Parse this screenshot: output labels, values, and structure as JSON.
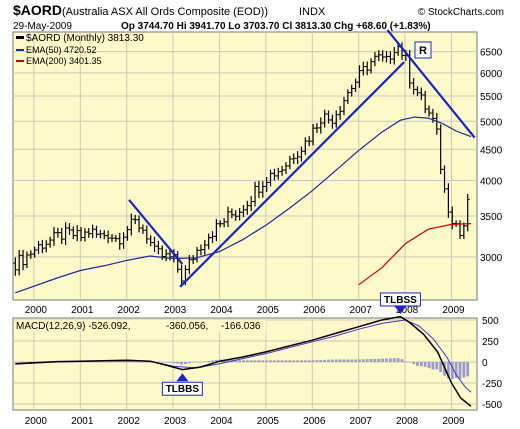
{
  "header": {
    "symbol": "$AORD",
    "name": "(Australia ASX All Ords Composite (EOD))",
    "exchange": "INDX",
    "source": "© StockCharts.com",
    "date": "29-May-2009",
    "quote": "Op 3744.70  Hi 3941.70  Lo 3703.70  Cl 3813.30  Chg +68.60 (+1.83%)",
    "quote_op": "3744.70",
    "quote_chg": "+68.60 (+1.83%)"
  },
  "price_panel": {
    "legend": [
      {
        "text": "$AORD (Monthly) 3813.30",
        "color": "#000000",
        "style": "bar"
      },
      {
        "text": "EMA(50) 4720.52",
        "color": "#1f2a9b",
        "style": "line"
      },
      {
        "text": "EMA(200) 3401.35",
        "color": "#d40000",
        "style": "line"
      }
    ],
    "y_ticks": [
      3000,
      3500,
      4000,
      4500,
      5000,
      5500,
      6000,
      6500
    ],
    "annotation_label": "R",
    "trendline_color": "#1a24c8"
  },
  "macd_panel": {
    "legend": {
      "main": "MACD(12,26,9) -526.092,",
      "signal": "-360.056,",
      "hist": "-166.036"
    },
    "signal_color": "#4433cc",
    "hist_color": "#9a9ad0",
    "y_ticks": [
      500,
      250,
      0,
      -250,
      -500
    ],
    "markers": [
      {
        "label": "TLBBS",
        "x": 2003.2,
        "y": -110,
        "dir": "up"
      },
      {
        "label": "TLBSS",
        "x": 2007.9,
        "y": 560,
        "dir": "down"
      }
    ]
  },
  "x_axis": {
    "years": [
      "2000",
      "2001",
      "2002",
      "2003",
      "2004",
      "2005",
      "2006",
      "2007",
      "2008",
      "2009"
    ]
  },
  "colors": {
    "panel_bg": "#fdf9c9",
    "grid": "#c9c9b8",
    "price_bar": "#000000",
    "ema50": "#1f2a9b",
    "ema200": "#d40000"
  },
  "chart_data": {
    "type": "ohlc",
    "title": "$AORD (Australia ASX All Ords Composite (EOD))",
    "period": "monthly",
    "x_range": [
      1999.55,
      2009.55
    ],
    "y_scale": "log",
    "ylim": [
      2550,
      7000
    ],
    "price_close_anchors": [
      [
        1999.6,
        2930
      ],
      [
        1999.8,
        2990
      ],
      [
        2000.0,
        3080
      ],
      [
        2000.2,
        3160
      ],
      [
        2000.4,
        3200
      ],
      [
        2000.6,
        3260
      ],
      [
        2000.8,
        3270
      ],
      [
        2001.0,
        3230
      ],
      [
        2001.2,
        3310
      ],
      [
        2001.4,
        3240
      ],
      [
        2001.6,
        3280
      ],
      [
        2001.8,
        3200
      ],
      [
        2002.0,
        3330
      ],
      [
        2002.2,
        3420
      ],
      [
        2002.4,
        3300
      ],
      [
        2002.6,
        3050
      ],
      [
        2002.8,
        3000
      ],
      [
        2003.0,
        2980
      ],
      [
        2003.2,
        2760
      ],
      [
        2003.4,
        2980
      ],
      [
        2003.6,
        3140
      ],
      [
        2003.8,
        3280
      ],
      [
        2004.0,
        3380
      ],
      [
        2004.2,
        3500
      ],
      [
        2004.4,
        3560
      ],
      [
        2004.6,
        3700
      ],
      [
        2004.8,
        3880
      ],
      [
        2005.0,
        4050
      ],
      [
        2005.2,
        4130
      ],
      [
        2005.4,
        4220
      ],
      [
        2005.6,
        4420
      ],
      [
        2005.8,
        4560
      ],
      [
        2006.0,
        4800
      ],
      [
        2006.2,
        5110
      ],
      [
        2006.4,
        5020
      ],
      [
        2006.6,
        5300
      ],
      [
        2006.8,
        5630
      ],
      [
        2007.0,
        5900
      ],
      [
        2007.2,
        6200
      ],
      [
        2007.4,
        6350
      ],
      [
        2007.6,
        6250
      ],
      [
        2007.8,
        6700
      ],
      [
        2007.9,
        6550
      ],
      [
        2008.0,
        6350
      ],
      [
        2008.1,
        5900
      ],
      [
        2008.2,
        5700
      ],
      [
        2008.3,
        5500
      ],
      [
        2008.45,
        5250
      ],
      [
        2008.6,
        5000
      ],
      [
        2008.7,
        4700
      ],
      [
        2008.8,
        4000
      ],
      [
        2008.9,
        3700
      ],
      [
        2009.0,
        3500
      ],
      [
        2009.1,
        3400
      ],
      [
        2009.2,
        3230
      ],
      [
        2009.3,
        3450
      ],
      [
        2009.35,
        3650
      ],
      [
        2009.42,
        3813
      ]
    ],
    "ema50": [
      [
        1999.6,
        2620
      ],
      [
        2000.5,
        2770
      ],
      [
        2001.0,
        2850
      ],
      [
        2001.5,
        2900
      ],
      [
        2002.0,
        2960
      ],
      [
        2002.5,
        3010
      ],
      [
        2003.0,
        2980
      ],
      [
        2003.5,
        2990
      ],
      [
        2004.0,
        3060
      ],
      [
        2004.5,
        3200
      ],
      [
        2005.0,
        3380
      ],
      [
        2005.5,
        3600
      ],
      [
        2006.0,
        3850
      ],
      [
        2006.5,
        4150
      ],
      [
        2007.0,
        4480
      ],
      [
        2007.5,
        4800
      ],
      [
        2007.9,
        5020
      ],
      [
        2008.2,
        5080
      ],
      [
        2008.5,
        5060
      ],
      [
        2008.8,
        4960
      ],
      [
        2009.1,
        4820
      ],
      [
        2009.42,
        4720
      ]
    ],
    "ema200": [
      [
        2007.0,
        2700
      ],
      [
        2007.5,
        2880
      ],
      [
        2008.0,
        3150
      ],
      [
        2008.5,
        3330
      ],
      [
        2009.0,
        3390
      ],
      [
        2009.42,
        3401
      ]
    ],
    "trendlines": [
      [
        [
          2003.15,
          2680
        ],
        [
          2007.98,
          6250
        ]
      ],
      [
        [
          2002.05,
          3720
        ],
        [
          2003.2,
          2920
        ]
      ],
      [
        [
          2007.62,
          7050
        ],
        [
          2009.5,
          4700
        ]
      ]
    ],
    "macd": [
      [
        1999.6,
        -20
      ],
      [
        2000.0,
        -10
      ],
      [
        2000.5,
        5
      ],
      [
        2001.0,
        10
      ],
      [
        2001.5,
        15
      ],
      [
        2002.0,
        20
      ],
      [
        2002.5,
        10
      ],
      [
        2002.8,
        -30
      ],
      [
        2003.2,
        -90
      ],
      [
        2003.6,
        -60
      ],
      [
        2004.0,
        10
      ],
      [
        2004.5,
        60
      ],
      [
        2005.0,
        120
      ],
      [
        2005.5,
        190
      ],
      [
        2006.0,
        260
      ],
      [
        2006.5,
        340
      ],
      [
        2007.0,
        420
      ],
      [
        2007.5,
        500
      ],
      [
        2007.9,
        540
      ],
      [
        2008.1,
        470
      ],
      [
        2008.4,
        330
      ],
      [
        2008.7,
        120
      ],
      [
        2009.0,
        -250
      ],
      [
        2009.2,
        -430
      ],
      [
        2009.42,
        -526
      ]
    ],
    "macd_signal": [
      [
        1999.6,
        -25
      ],
      [
        2000.5,
        0
      ],
      [
        2001.5,
        12
      ],
      [
        2002.5,
        12
      ],
      [
        2003.0,
        -50
      ],
      [
        2003.5,
        -70
      ],
      [
        2004.0,
        -20
      ],
      [
        2004.5,
        40
      ],
      [
        2005.0,
        100
      ],
      [
        2005.5,
        170
      ],
      [
        2006.0,
        240
      ],
      [
        2006.5,
        310
      ],
      [
        2007.0,
        390
      ],
      [
        2007.5,
        460
      ],
      [
        2008.0,
        500
      ],
      [
        2008.3,
        430
      ],
      [
        2008.6,
        280
      ],
      [
        2008.9,
        60
      ],
      [
        2009.1,
        -150
      ],
      [
        2009.3,
        -300
      ],
      [
        2009.42,
        -360
      ]
    ]
  }
}
